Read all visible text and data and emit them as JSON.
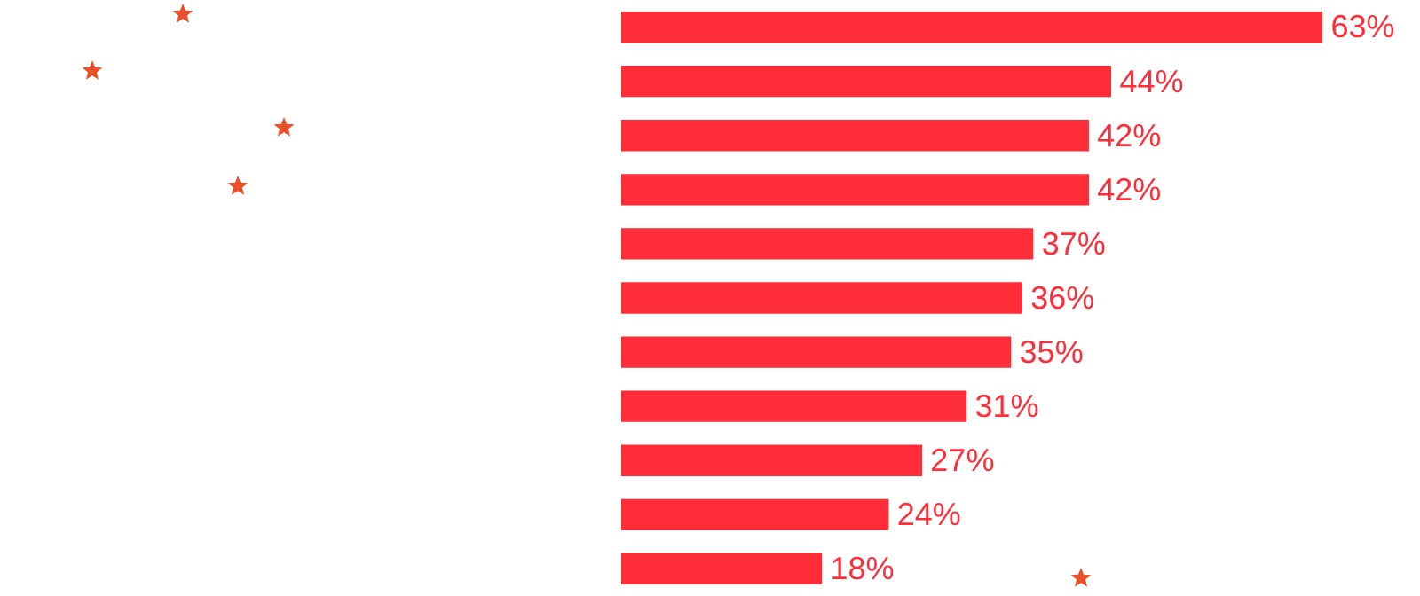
{
  "chart_data": {
    "type": "bar",
    "orientation": "horizontal",
    "categories": [
      null,
      null,
      null,
      null,
      null,
      null,
      null,
      null,
      null,
      null,
      null
    ],
    "values": [
      63,
      44,
      42,
      42,
      37,
      36,
      35,
      31,
      27,
      24,
      18
    ],
    "value_labels": [
      "63%",
      "44%",
      "42%",
      "42%",
      "37%",
      "36%",
      "35%",
      "31%",
      "27%",
      "24%",
      "18%"
    ],
    "color": "#ff2d38"
  }
}
